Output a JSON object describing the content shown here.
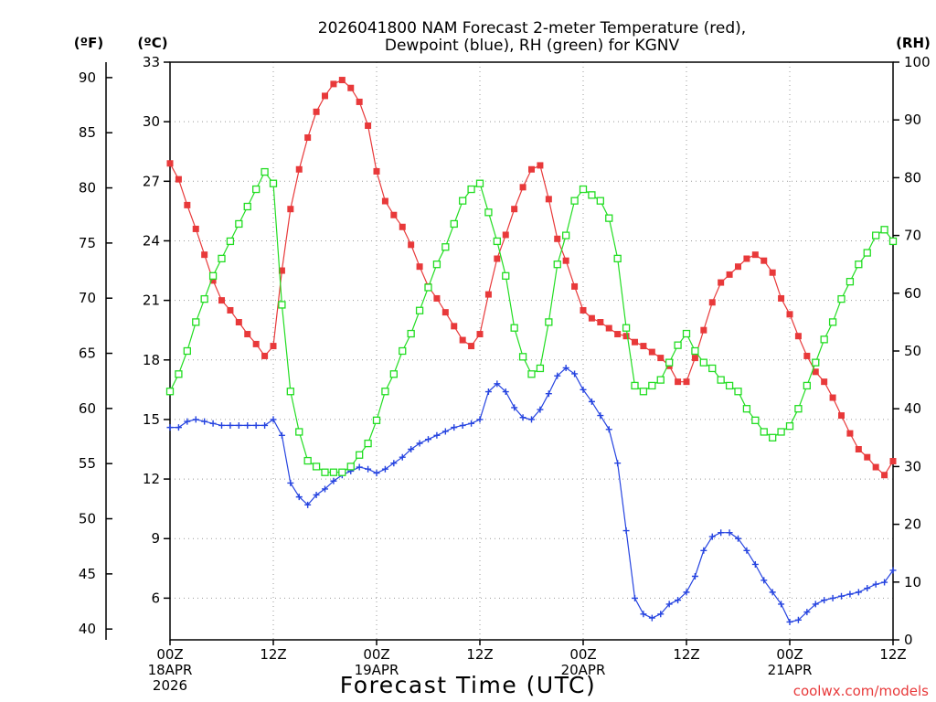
{
  "chart_data": {
    "type": "line",
    "title": "2026041800 NAM Forecast 2-meter Temperature (red),",
    "subtitle": "Dewpoint (blue), RH (green) for KGNV",
    "xlabel": "Forecast Time (UTC)",
    "credit": "coolwx.com/models",
    "units": {
      "fahrenheit": "(ºF)",
      "celsius": "(ºC)",
      "rh": "(RH)"
    },
    "x_hours_range": [
      0,
      84
    ],
    "y_celsius_range": [
      3.9,
      33
    ],
    "y_rh_range": [
      0,
      100
    ],
    "grid": true,
    "x_ticks": [
      {
        "h": 0,
        "lines": [
          "00Z",
          "18APR",
          "2026"
        ]
      },
      {
        "h": 12,
        "lines": [
          "12Z"
        ]
      },
      {
        "h": 24,
        "lines": [
          "00Z",
          "19APR"
        ]
      },
      {
        "h": 36,
        "lines": [
          "12Z"
        ]
      },
      {
        "h": 48,
        "lines": [
          "00Z",
          "20APR"
        ]
      },
      {
        "h": 60,
        "lines": [
          "12Z"
        ]
      },
      {
        "h": 72,
        "lines": [
          "00Z",
          "21APR"
        ]
      },
      {
        "h": 84,
        "lines": [
          "12Z"
        ]
      }
    ],
    "y_ticks_celsius": [
      "6",
      "9",
      "12",
      "15",
      "18",
      "21",
      "24",
      "27",
      "30",
      "33"
    ],
    "y_ticks_fahrenheit": [
      "40",
      "45",
      "50",
      "55",
      "60",
      "65",
      "70",
      "75",
      "80",
      "85",
      "90"
    ],
    "y_ticks_rh": [
      "0",
      "10",
      "20",
      "30",
      "40",
      "50",
      "60",
      "70",
      "80",
      "90",
      "100"
    ],
    "series": [
      {
        "name": "Temperature",
        "unit": "C",
        "color": "#e8393a",
        "marker": "filled-square",
        "values": [
          [
            0,
            27.9
          ],
          [
            1,
            27.1
          ],
          [
            2,
            25.8
          ],
          [
            3,
            24.6
          ],
          [
            4,
            23.3
          ],
          [
            5,
            22.0
          ],
          [
            6,
            21.0
          ],
          [
            7,
            20.5
          ],
          [
            8,
            19.9
          ],
          [
            9,
            19.3
          ],
          [
            10,
            18.8
          ],
          [
            11,
            18.2
          ],
          [
            12,
            18.7
          ],
          [
            13,
            22.5
          ],
          [
            14,
            25.6
          ],
          [
            15,
            27.6
          ],
          [
            16,
            29.2
          ],
          [
            17,
            30.5
          ],
          [
            18,
            31.3
          ],
          [
            19,
            31.9
          ],
          [
            20,
            32.1
          ],
          [
            21,
            31.7
          ],
          [
            22,
            31.0
          ],
          [
            23,
            29.8
          ],
          [
            24,
            27.5
          ],
          [
            25,
            26.0
          ],
          [
            26,
            25.3
          ],
          [
            27,
            24.7
          ],
          [
            28,
            23.8
          ],
          [
            29,
            22.7
          ],
          [
            30,
            21.7
          ],
          [
            31,
            21.1
          ],
          [
            32,
            20.4
          ],
          [
            33,
            19.7
          ],
          [
            34,
            19.0
          ],
          [
            35,
            18.7
          ],
          [
            36,
            19.3
          ],
          [
            37,
            21.3
          ],
          [
            38,
            23.1
          ],
          [
            39,
            24.3
          ],
          [
            40,
            25.6
          ],
          [
            41,
            26.7
          ],
          [
            42,
            27.6
          ],
          [
            43,
            27.8
          ],
          [
            44,
            26.1
          ],
          [
            45,
            24.1
          ],
          [
            46,
            23.0
          ],
          [
            47,
            21.7
          ],
          [
            48,
            20.5
          ],
          [
            49,
            20.1
          ],
          [
            50,
            19.9
          ],
          [
            51,
            19.6
          ],
          [
            52,
            19.3
          ],
          [
            53,
            19.2
          ],
          [
            54,
            18.9
          ],
          [
            55,
            18.7
          ],
          [
            56,
            18.4
          ],
          [
            57,
            18.1
          ],
          [
            58,
            17.7
          ],
          [
            59,
            16.9
          ],
          [
            60,
            16.9
          ],
          [
            61,
            18.1
          ],
          [
            62,
            19.5
          ],
          [
            63,
            20.9
          ],
          [
            64,
            21.9
          ],
          [
            65,
            22.3
          ],
          [
            66,
            22.7
          ],
          [
            67,
            23.1
          ],
          [
            68,
            23.3
          ],
          [
            69,
            23.0
          ],
          [
            70,
            22.4
          ],
          [
            71,
            21.1
          ],
          [
            72,
            20.3
          ],
          [
            73,
            19.2
          ],
          [
            74,
            18.2
          ],
          [
            75,
            17.4
          ],
          [
            76,
            16.9
          ],
          [
            77,
            16.1
          ],
          [
            78,
            15.2
          ],
          [
            79,
            14.3
          ],
          [
            80,
            13.5
          ],
          [
            81,
            13.1
          ],
          [
            82,
            12.6
          ],
          [
            83,
            12.2
          ],
          [
            84,
            12.9
          ]
        ]
      },
      {
        "name": "Dewpoint",
        "unit": "C",
        "color": "#2644e0",
        "marker": "plus",
        "values": [
          [
            0,
            14.6
          ],
          [
            1,
            14.6
          ],
          [
            2,
            14.9
          ],
          [
            3,
            15.0
          ],
          [
            4,
            14.9
          ],
          [
            5,
            14.8
          ],
          [
            6,
            14.7
          ],
          [
            7,
            14.7
          ],
          [
            8,
            14.7
          ],
          [
            9,
            14.7
          ],
          [
            10,
            14.7
          ],
          [
            11,
            14.7
          ],
          [
            12,
            15.0
          ],
          [
            13,
            14.2
          ],
          [
            14,
            11.8
          ],
          [
            15,
            11.1
          ],
          [
            16,
            10.7
          ],
          [
            17,
            11.2
          ],
          [
            18,
            11.5
          ],
          [
            19,
            11.9
          ],
          [
            20,
            12.2
          ],
          [
            21,
            12.4
          ],
          [
            22,
            12.6
          ],
          [
            23,
            12.5
          ],
          [
            24,
            12.3
          ],
          [
            25,
            12.5
          ],
          [
            26,
            12.8
          ],
          [
            27,
            13.1
          ],
          [
            28,
            13.5
          ],
          [
            29,
            13.8
          ],
          [
            30,
            14.0
          ],
          [
            31,
            14.2
          ],
          [
            32,
            14.4
          ],
          [
            33,
            14.6
          ],
          [
            34,
            14.7
          ],
          [
            35,
            14.8
          ],
          [
            36,
            15.0
          ],
          [
            37,
            16.4
          ],
          [
            38,
            16.8
          ],
          [
            39,
            16.4
          ],
          [
            40,
            15.6
          ],
          [
            41,
            15.1
          ],
          [
            42,
            15.0
          ],
          [
            43,
            15.5
          ],
          [
            44,
            16.3
          ],
          [
            45,
            17.2
          ],
          [
            46,
            17.6
          ],
          [
            47,
            17.3
          ],
          [
            48,
            16.5
          ],
          [
            49,
            15.9
          ],
          [
            50,
            15.2
          ],
          [
            51,
            14.5
          ],
          [
            52,
            12.8
          ],
          [
            53,
            9.4
          ],
          [
            54,
            6.0
          ],
          [
            55,
            5.2
          ],
          [
            56,
            5.0
          ],
          [
            57,
            5.2
          ],
          [
            58,
            5.7
          ],
          [
            59,
            5.9
          ],
          [
            60,
            6.3
          ],
          [
            61,
            7.1
          ],
          [
            62,
            8.4
          ],
          [
            63,
            9.1
          ],
          [
            64,
            9.3
          ],
          [
            65,
            9.3
          ],
          [
            66,
            9.0
          ],
          [
            67,
            8.4
          ],
          [
            68,
            7.7
          ],
          [
            69,
            6.9
          ],
          [
            70,
            6.3
          ],
          [
            71,
            5.7
          ],
          [
            72,
            4.8
          ],
          [
            73,
            4.9
          ],
          [
            74,
            5.3
          ],
          [
            75,
            5.7
          ],
          [
            76,
            5.9
          ],
          [
            77,
            6.0
          ],
          [
            78,
            6.1
          ],
          [
            79,
            6.2
          ],
          [
            80,
            6.3
          ],
          [
            81,
            6.5
          ],
          [
            82,
            6.7
          ],
          [
            83,
            6.8
          ],
          [
            84,
            7.4
          ]
        ]
      },
      {
        "name": "RH",
        "unit": "%",
        "color": "#22dd22",
        "marker": "open-square",
        "values": [
          [
            0,
            43
          ],
          [
            1,
            46
          ],
          [
            2,
            50
          ],
          [
            3,
            55
          ],
          [
            4,
            59
          ],
          [
            5,
            63
          ],
          [
            6,
            66
          ],
          [
            7,
            69
          ],
          [
            8,
            72
          ],
          [
            9,
            75
          ],
          [
            10,
            78
          ],
          [
            11,
            81
          ],
          [
            12,
            79
          ],
          [
            13,
            58
          ],
          [
            14,
            43
          ],
          [
            15,
            36
          ],
          [
            16,
            31
          ],
          [
            17,
            30
          ],
          [
            18,
            29
          ],
          [
            19,
            29
          ],
          [
            20,
            29
          ],
          [
            21,
            30
          ],
          [
            22,
            32
          ],
          [
            23,
            34
          ],
          [
            24,
            38
          ],
          [
            25,
            43
          ],
          [
            26,
            46
          ],
          [
            27,
            50
          ],
          [
            28,
            53
          ],
          [
            29,
            57
          ],
          [
            30,
            61
          ],
          [
            31,
            65
          ],
          [
            32,
            68
          ],
          [
            33,
            72
          ],
          [
            34,
            76
          ],
          [
            35,
            78
          ],
          [
            36,
            79
          ],
          [
            37,
            74
          ],
          [
            38,
            69
          ],
          [
            39,
            63
          ],
          [
            40,
            54
          ],
          [
            41,
            49
          ],
          [
            42,
            46
          ],
          [
            43,
            47
          ],
          [
            44,
            55
          ],
          [
            45,
            65
          ],
          [
            46,
            70
          ],
          [
            47,
            76
          ],
          [
            48,
            78
          ],
          [
            49,
            77
          ],
          [
            50,
            76
          ],
          [
            51,
            73
          ],
          [
            52,
            66
          ],
          [
            53,
            54
          ],
          [
            54,
            44
          ],
          [
            55,
            43
          ],
          [
            56,
            44
          ],
          [
            57,
            45
          ],
          [
            58,
            48
          ],
          [
            59,
            51
          ],
          [
            60,
            53
          ],
          [
            61,
            50
          ],
          [
            62,
            48
          ],
          [
            63,
            47
          ],
          [
            64,
            45
          ],
          [
            65,
            44
          ],
          [
            66,
            43
          ],
          [
            67,
            40
          ],
          [
            68,
            38
          ],
          [
            69,
            36
          ],
          [
            70,
            35
          ],
          [
            71,
            36
          ],
          [
            72,
            37
          ],
          [
            73,
            40
          ],
          [
            74,
            44
          ],
          [
            75,
            48
          ],
          [
            76,
            52
          ],
          [
            77,
            55
          ],
          [
            78,
            59
          ],
          [
            79,
            62
          ],
          [
            80,
            65
          ],
          [
            81,
            67
          ],
          [
            82,
            70
          ],
          [
            83,
            71
          ],
          [
            84,
            69
          ]
        ]
      }
    ]
  }
}
